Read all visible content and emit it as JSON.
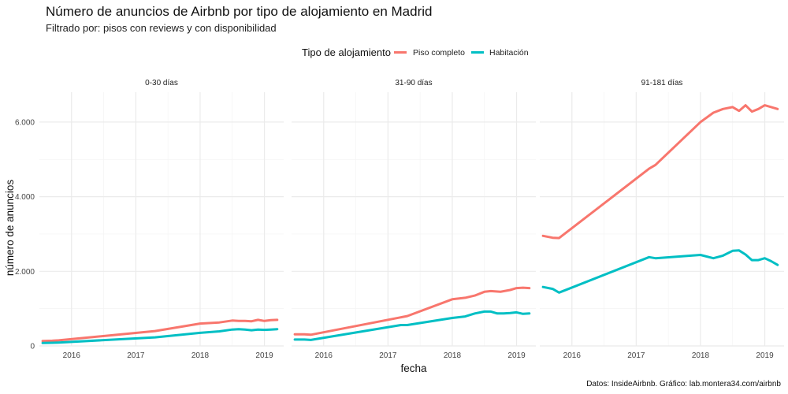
{
  "title": "Número de anuncios de Airbnb por tipo de alojamiento en Madrid",
  "subtitle": "Filtrado por: pisos con reviews y con disponibilidad",
  "caption": "Datos: InsideAirbnb. Gráfico: lab.montera34.com/airbnb",
  "legend": {
    "title": "Tipo de alojamiento",
    "position": "top",
    "items": [
      {
        "label": "Piso completo",
        "color": "#F8766D"
      },
      {
        "label": "Habitación",
        "color": "#00BFC4"
      }
    ]
  },
  "colors": {
    "piso": "#F8766D",
    "habitacion": "#00BFC4"
  },
  "chart_data": {
    "type": "line",
    "facet_by": "disponibilidad",
    "xlabel": "fecha",
    "ylabel": "número de anuncios",
    "x_ticks": [
      2016,
      2017,
      2018,
      2019
    ],
    "x_tick_labels": [
      "2016",
      "2017",
      "2018",
      "2019"
    ],
    "xlim": [
      2015.5,
      2019.3
    ],
    "ylim": [
      0,
      6800
    ],
    "y_ticks": [
      0,
      2000,
      4000,
      6000
    ],
    "y_tick_labels": [
      "0",
      "2.000",
      "4.000",
      "6.000"
    ],
    "grid": true,
    "panels": [
      {
        "label": "0-30 días",
        "series": [
          {
            "name": "Piso completo",
            "x": [
              2015.55,
              2015.7,
              2015.8,
              2017.3,
              2018.0,
              2018.3,
              2018.5,
              2018.6,
              2018.7,
              2018.8,
              2018.9,
              2019.0,
              2019.1,
              2019.2
            ],
            "y": [
              130,
              140,
              150,
              400,
              600,
              630,
              680,
              670,
              670,
              660,
              700,
              670,
              690,
              700
            ]
          },
          {
            "name": "Habitación",
            "x": [
              2015.55,
              2015.7,
              2015.8,
              2017.3,
              2018.0,
              2018.3,
              2018.5,
              2018.6,
              2018.7,
              2018.8,
              2018.9,
              2019.0,
              2019.1,
              2019.2
            ],
            "y": [
              80,
              85,
              90,
              230,
              350,
              390,
              440,
              450,
              440,
              420,
              440,
              430,
              440,
              450
            ]
          }
        ]
      },
      {
        "label": "31-90 días",
        "series": [
          {
            "name": "Piso completo",
            "x": [
              2015.55,
              2015.7,
              2015.8,
              2017.3,
              2018.0,
              2018.2,
              2018.35,
              2018.5,
              2018.6,
              2018.75,
              2018.9,
              2019.0,
              2019.1,
              2019.2
            ],
            "y": [
              310,
              310,
              300,
              800,
              1250,
              1290,
              1350,
              1450,
              1470,
              1450,
              1500,
              1550,
              1560,
              1550
            ]
          },
          {
            "name": "Habitación",
            "x": [
              2015.55,
              2015.7,
              2015.8,
              2017.2,
              2017.3,
              2018.0,
              2018.2,
              2018.35,
              2018.5,
              2018.6,
              2018.7,
              2018.8,
              2018.9,
              2019.0,
              2019.1,
              2019.2
            ],
            "y": [
              170,
              170,
              160,
              560,
              560,
              750,
              790,
              870,
              920,
              920,
              870,
              870,
              880,
              900,
              860,
              870
            ]
          }
        ]
      },
      {
        "label": "91-181 días",
        "series": [
          {
            "name": "Piso completo",
            "x": [
              2015.55,
              2015.7,
              2015.8,
              2017.2,
              2017.3,
              2018.0,
              2018.2,
              2018.35,
              2018.5,
              2018.6,
              2018.7,
              2018.8,
              2018.9,
              2019.0,
              2019.1,
              2019.2
            ],
            "y": [
              2950,
              2900,
              2890,
              4750,
              4850,
              6000,
              6250,
              6350,
              6400,
              6300,
              6450,
              6280,
              6350,
              6450,
              6400,
              6350
            ]
          },
          {
            "name": "Habitación",
            "x": [
              2015.55,
              2015.7,
              2015.8,
              2017.2,
              2017.3,
              2018.0,
              2018.2,
              2018.35,
              2018.5,
              2018.6,
              2018.7,
              2018.8,
              2018.9,
              2019.0,
              2019.1,
              2019.2
            ],
            "y": [
              1580,
              1530,
              1430,
              2380,
              2350,
              2440,
              2350,
              2420,
              2550,
              2560,
              2450,
              2300,
              2300,
              2350,
              2270,
              2170
            ]
          }
        ]
      }
    ]
  }
}
